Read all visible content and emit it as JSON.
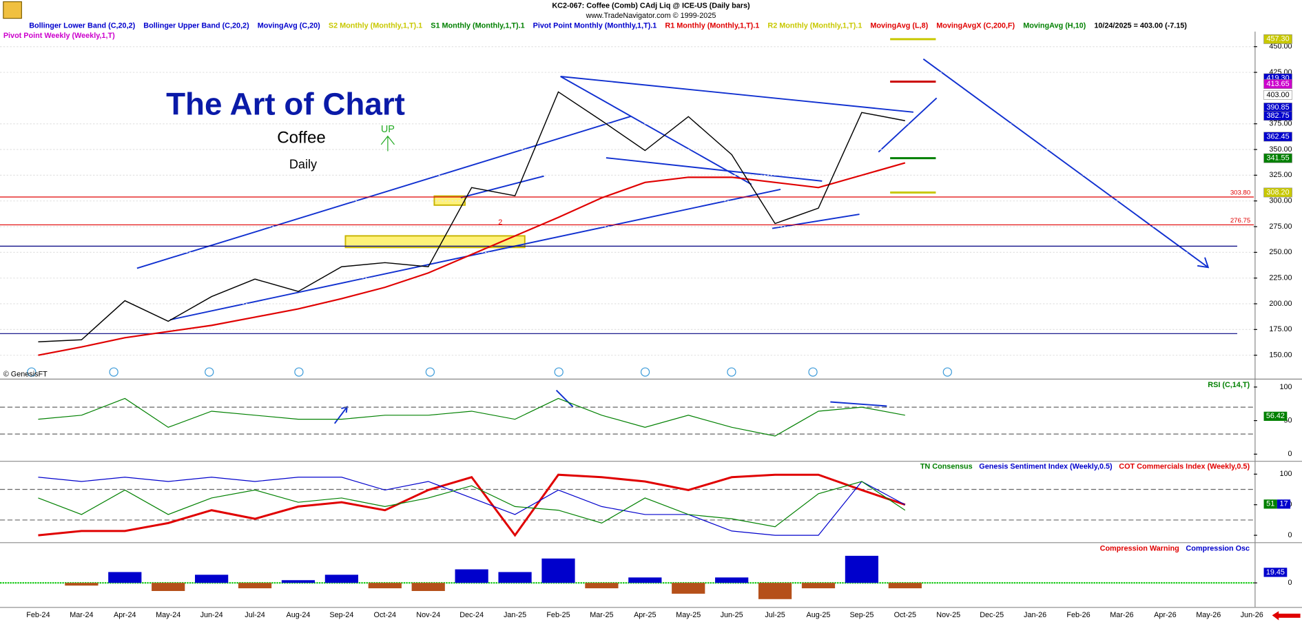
{
  "header": {
    "title": "KC2-067:  Coffee (Comb) CAdj Liq @ ICE-US  (Daily bars)",
    "subtitle": "www.TradeNavigator.com © 1999-2025"
  },
  "legend": [
    {
      "text": "Bollinger Lower Band (C,20,2)",
      "color": "#0000cc"
    },
    {
      "text": "Bollinger Upper Band (C,20,2)",
      "color": "#0000cc"
    },
    {
      "text": "MovingAvg (C,20)",
      "color": "#0000cc"
    },
    {
      "text": "S2 Monthly (Monthly,1,T).1",
      "color": "#c8c800"
    },
    {
      "text": "S1 Monthly (Monthly,1,T).1",
      "color": "#008000"
    },
    {
      "text": "Pivot Point Monthly (Monthly,1,T).1",
      "color": "#0000cc"
    },
    {
      "text": "R1 Monthly (Monthly,1,T).1",
      "color": "#e00000"
    },
    {
      "text": "R2 Monthly (Monthly,1,T).1",
      "color": "#c8c800"
    },
    {
      "text": "MovingAvg (L,8)",
      "color": "#e00000"
    },
    {
      "text": "MovingAvgX (C,200,F)",
      "color": "#e00000"
    },
    {
      "text": "MovingAvg (H,10)",
      "color": "#008000"
    },
    {
      "text": "10/24/2025 = 403.00 (-7.15)",
      "color": "#000000"
    }
  ],
  "legend2": [
    {
      "text": "Pivot Point Weekly (Weekly,1,T)",
      "color": "#cc00cc"
    }
  ],
  "annotations": {
    "headline": "The Art of Chart",
    "symbol": "Coffee",
    "period": "Daily",
    "signal": "UP",
    "credit": "© GenesisFT",
    "marker": "2"
  },
  "chart_data": [
    {
      "type": "line",
      "categories": [
        "Feb-24",
        "Mar-24",
        "Apr-24",
        "May-24",
        "Jun-24",
        "Jul-24",
        "Aug-24",
        "Sep-24",
        "Oct-24",
        "Nov-24",
        "Dec-24",
        "Jan-25",
        "Feb-25",
        "Mar-25",
        "Apr-25",
        "May-25",
        "Jun-25",
        "Jul-25",
        "Aug-25",
        "Sep-25",
        "Oct-25",
        "Nov-25",
        "Dec-25",
        "Jan-26",
        "Feb-26",
        "Mar-26",
        "Apr-26",
        "May-26",
        "Jun-26"
      ],
      "values": [
        163,
        165,
        203,
        183,
        207,
        224,
        212,
        236,
        240,
        236,
        313,
        305,
        406,
        378,
        349,
        382,
        345,
        278,
        293,
        386,
        378,
        null,
        null,
        null,
        null,
        null,
        null,
        null,
        null
      ],
      "color": "#000000",
      "ma_values": [
        150,
        158,
        167,
        173,
        179,
        187,
        195,
        205,
        216,
        230,
        248,
        266,
        284,
        303,
        318,
        323,
        323,
        318,
        313,
        325,
        337,
        null,
        null,
        null,
        null,
        null,
        null,
        null,
        null
      ],
      "ma_color": "#e00000",
      "ylim": [
        128,
        463
      ],
      "yticks": [
        {
          "value": 450,
          "label": "450.00"
        },
        {
          "value": 425,
          "label": "425.00"
        },
        {
          "value": 375,
          "label": "375.00"
        },
        {
          "value": 350,
          "label": "350.00"
        },
        {
          "value": 325,
          "label": "325.00"
        },
        {
          "value": 300,
          "label": "300.00"
        },
        {
          "value": 275,
          "label": "275.00"
        },
        {
          "value": 250,
          "label": "250.00"
        },
        {
          "value": 225,
          "label": "225.00"
        },
        {
          "value": 200,
          "label": "200.00"
        },
        {
          "value": 175,
          "label": "175.00"
        },
        {
          "value": 150,
          "label": "150.00"
        }
      ],
      "grid": true,
      "levels": [
        {
          "value": 303.8,
          "label": "303.80"
        },
        {
          "value": 276.75,
          "label": "276.75"
        }
      ],
      "level_color": "#e00000",
      "support_lines": [
        256,
        171
      ],
      "support_color": "#000080",
      "pivot_lines": [
        {
          "value": 457.3,
          "color": "#c8c800"
        },
        {
          "value": 416,
          "color": "#cc0000"
        },
        {
          "value": 341.55,
          "color": "#008000"
        },
        {
          "value": 308.2,
          "color": "#c8c800"
        }
      ],
      "price_labels": [
        {
          "value": 457.3,
          "label": "457.30",
          "color": "#c8c800",
          "text_color": "#ffffff"
        },
        {
          "value": 419.3,
          "label": "419.30",
          "color": "#0000cc",
          "text_color": "#ffffff"
        },
        {
          "value": 413.65,
          "label": "413.65",
          "color": "#cc00cc",
          "text_color": "#ffffff"
        },
        {
          "value": 403,
          "label": "403.00",
          "color": "#ffffff",
          "text_color": "#000000"
        },
        {
          "value": 390.85,
          "label": "390.85",
          "color": "#0000cc",
          "text_color": "#ffffff"
        },
        {
          "value": 382.75,
          "label": "382.75",
          "color": "#0000cc",
          "text_color": "#ffffff"
        },
        {
          "value": 362.45,
          "label": "362.45",
          "color": "#0000cc",
          "text_color": "#ffffff"
        },
        {
          "value": 341.55,
          "label": "341.55",
          "color": "#008000",
          "text_color": "#ffffff"
        },
        {
          "value": 308.2,
          "label": "308.20",
          "color": "#c8c800",
          "text_color": "#ffffff"
        }
      ]
    },
    {
      "type": "line",
      "title": "RSI (C,14,T)",
      "color": "#008000",
      "values": [
        52,
        58,
        83,
        40,
        64,
        58,
        52,
        52,
        58,
        58,
        64,
        52,
        83,
        58,
        40,
        58,
        40,
        27,
        64,
        70,
        58,
        null,
        null,
        null,
        null,
        null,
        null,
        null,
        null
      ],
      "ylim": [
        -10,
        110
      ],
      "yticks": [
        100,
        50,
        0
      ],
      "bands": [
        70,
        30
      ],
      "last_value": 56.42
    },
    {
      "type": "line",
      "series": [
        {
          "name": "TN Consensus",
          "color": "#008000",
          "values": [
            61,
            34,
            74,
            34,
            61,
            74,
            54,
            61,
            47,
            61,
            81,
            47,
            41,
            20,
            61,
            34,
            27,
            14,
            68,
            88,
            41,
            null,
            null,
            null,
            null,
            null,
            null,
            null,
            null
          ]
        },
        {
          "name": "Genesis Sentiment Index (Weekly,0.5)",
          "color": "#0000cc",
          "values": [
            95,
            88,
            95,
            88,
            95,
            88,
            95,
            95,
            74,
            88,
            61,
            34,
            74,
            47,
            34,
            34,
            7,
            0,
            0,
            88,
            50,
            null,
            null,
            null,
            null,
            null,
            null,
            null,
            null
          ]
        },
        {
          "name": "COT Commercials Index (Weekly,0.5)",
          "color": "#e00000",
          "values": [
            0,
            7,
            7,
            20,
            41,
            27,
            47,
            54,
            41,
            74,
            95,
            0,
            99,
            95,
            88,
            74,
            95,
            99,
            99,
            74,
            50,
            null,
            null,
            null,
            null,
            null,
            null,
            null,
            null
          ]
        }
      ],
      "ylim": [
        -10,
        119
      ],
      "yticks": [
        100,
        50,
        0
      ],
      "bands": [
        75,
        25
      ],
      "last_values": [
        {
          "value": 51,
          "color": "#008000"
        },
        {
          "value": 17,
          "color": "#0000cc"
        }
      ]
    },
    {
      "type": "bar",
      "series": [
        {
          "name": "Compression Warning",
          "color": "#e00000",
          "values": []
        },
        {
          "name": "Compression Osc",
          "color": "#0000cc",
          "values": [
            0,
            -5,
            20,
            -15,
            15,
            -10,
            5,
            15,
            -10,
            -15,
            25,
            20,
            45,
            -10,
            10,
            -20,
            10,
            -30,
            -10,
            50,
            -10,
            null,
            null,
            null,
            null,
            null,
            null,
            null,
            null
          ]
        }
      ],
      "negative_color": "#b5501a",
      "ylim": [
        -43,
        72
      ],
      "yticks": [
        0
      ],
      "last_value": 19.45
    }
  ]
}
